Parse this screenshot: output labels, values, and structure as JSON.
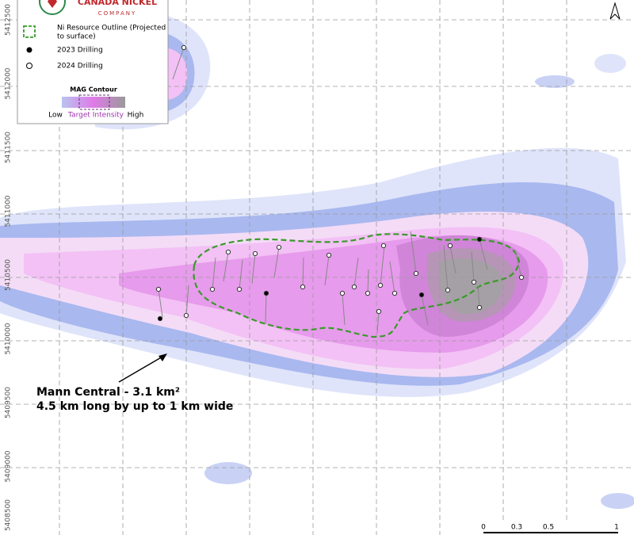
{
  "logo": {
    "name": "CANADA NICKEL",
    "tagline": "COMPANY"
  },
  "legend": {
    "items": [
      "Ni Resource Outline (Projected",
      "to surface)",
      "2023 Drilling",
      "2024 Drilling"
    ],
    "contour_title": "MAG Contour",
    "low": "Low",
    "target": "Target Intensity",
    "high": "High"
  },
  "northing": [
    "5412500",
    "5412000",
    "5411500",
    "5411000",
    "5410500",
    "5410000",
    "5409500",
    "5409000",
    "5408500"
  ],
  "annotation": [
    "Mann Central - 3.1 km²",
    "4.5 km long by up to 1 km wide"
  ],
  "scale": [
    "0",
    "0.3",
    "0.5",
    "1"
  ]
}
